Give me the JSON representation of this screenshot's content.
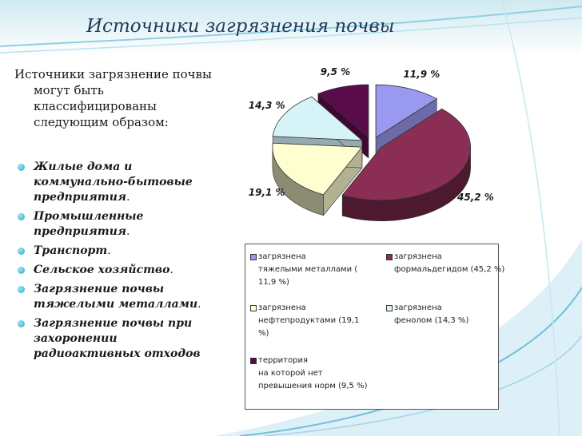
{
  "title": "Источники загрязнения почвы",
  "intro": {
    "first_line": "Источники загрязнение почвы",
    "rest": "могут быть классифицированы следующим образом:"
  },
  "sources": [
    {
      "text": "Жилые дома и коммунально-бытовые предприятия",
      "end": "."
    },
    {
      "text": "Промышленные предприятия",
      "end": "."
    },
    {
      "text": "Транспорт",
      "end": "."
    },
    {
      "text": "Сельское хозяйство",
      "end": "."
    },
    {
      "text": "Загрязнение почвы тяжелыми металлами",
      "end": "."
    },
    {
      "text": "Загрязнение почвы при захоронении радиоактивных отходов",
      "end": ""
    }
  ],
  "chart_data": {
    "type": "pie",
    "slices": [
      {
        "label": "11,9 %",
        "value": 11.9,
        "color": "#9a99f0",
        "legend": "загрязнена\nтяжелыми металлами ( 11,9 %)"
      },
      {
        "label": "45,2 %",
        "value": 45.2,
        "color": "#8b2e56",
        "legend": "загрязнена\nформальдегидом (45,2 %)"
      },
      {
        "label": "19,1 %",
        "value": 19.1,
        "color": "#fefed0",
        "legend": "загрязнена\nнефтепродуктами (19,1 %)"
      },
      {
        "label": "14,3 %",
        "value": 14.3,
        "color": "#d6f4f8",
        "legend": "загрязнена\nфенолом (14,3 %)"
      },
      {
        "label": "9,5 %",
        "value": 9.5,
        "color": "#5a0b4a",
        "legend": "территория\nна которой нет\nпревышения норм (9,5 %)"
      }
    ],
    "exploded": true,
    "three_d": true,
    "legend_position": "bottom"
  },
  "colors": {
    "title": "#1f3a5a",
    "bullet": "#2aa9c8",
    "ribbon_light": "#b9e3ee",
    "ribbon_dark": "#5aaed0"
  }
}
